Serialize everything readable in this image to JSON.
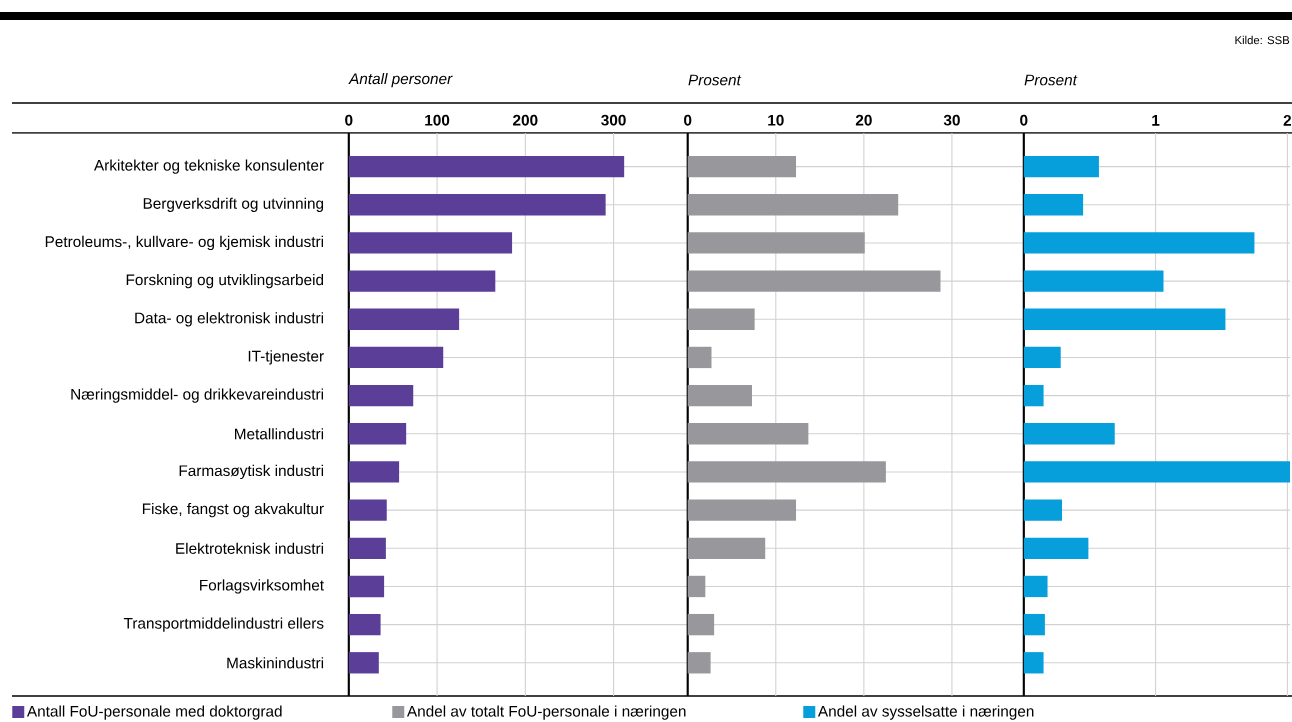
{
  "chart_data": [
    {
      "type": "bar",
      "orientation": "horizontal",
      "xlabel": "Antall personer",
      "categories": [
        "Arkitekter og tekniske konsulenter",
        "Bergverksdrift og utvinning",
        "Petroleums-, kullvare- og kjemisk industri",
        "Forskning og utviklingsarbeid",
        "Data- og elektronisk industri",
        "IT-tjenester",
        "Næringsmiddel- og drikkevareindustri",
        "Metallindustri",
        "Farmasøytisk industri",
        "Fiske, fangst og akvakultur",
        "Elektroteknisk industri",
        "Forlagsvirksomhet",
        "Transportmiddelindustri ellers",
        "Maskinindustri"
      ],
      "series": [
        {
          "name": "Antall FoU-personale med doktorgrad",
          "color": "#5a3e98",
          "values": [
            312,
            291,
            185,
            166,
            125,
            107,
            73,
            65,
            57,
            43,
            42,
            40,
            36,
            34
          ]
        }
      ],
      "xlim": [
        0,
        384
      ],
      "xticks": [
        0,
        100,
        200,
        300
      ],
      "grid": true,
      "legend": "bottom"
    },
    {
      "type": "bar",
      "orientation": "horizontal",
      "xlabel": "Prosent",
      "categories": [
        null,
        null,
        null,
        null,
        null,
        null,
        null,
        null,
        null,
        null,
        null,
        null,
        null,
        null
      ],
      "series": [
        {
          "name": "Andel av totalt FoU-personale i næringen",
          "color": "#98979c",
          "values": [
            12.3,
            23.9,
            20.1,
            28.7,
            7.6,
            2.7,
            7.3,
            13.7,
            22.5,
            12.3,
            8.8,
            2.0,
            3.0,
            2.6
          ]
        }
      ],
      "xlim": [
        0,
        38
      ],
      "xticks": [
        0,
        10,
        20,
        30
      ],
      "grid": true,
      "legend": "bottom"
    },
    {
      "type": "bar",
      "orientation": "horizontal",
      "xlabel": "Prosent",
      "categories": [
        null,
        null,
        null,
        null,
        null,
        null,
        null,
        null,
        null,
        null,
        null,
        null,
        null,
        null
      ],
      "series": [
        {
          "name": "Andel av sysselsatte i næringen",
          "color": "#069edb",
          "values": [
            0.57,
            0.45,
            1.75,
            1.06,
            1.53,
            0.28,
            0.15,
            0.69,
            2.02,
            0.29,
            0.49,
            0.18,
            0.16,
            0.15
          ]
        }
      ],
      "xlim": [
        0,
        2.02
      ],
      "xticks": [
        0,
        1,
        2
      ],
      "grid": true,
      "legend": "bottom",
      "annotations": [
        "Kilde: SSB"
      ]
    }
  ]
}
